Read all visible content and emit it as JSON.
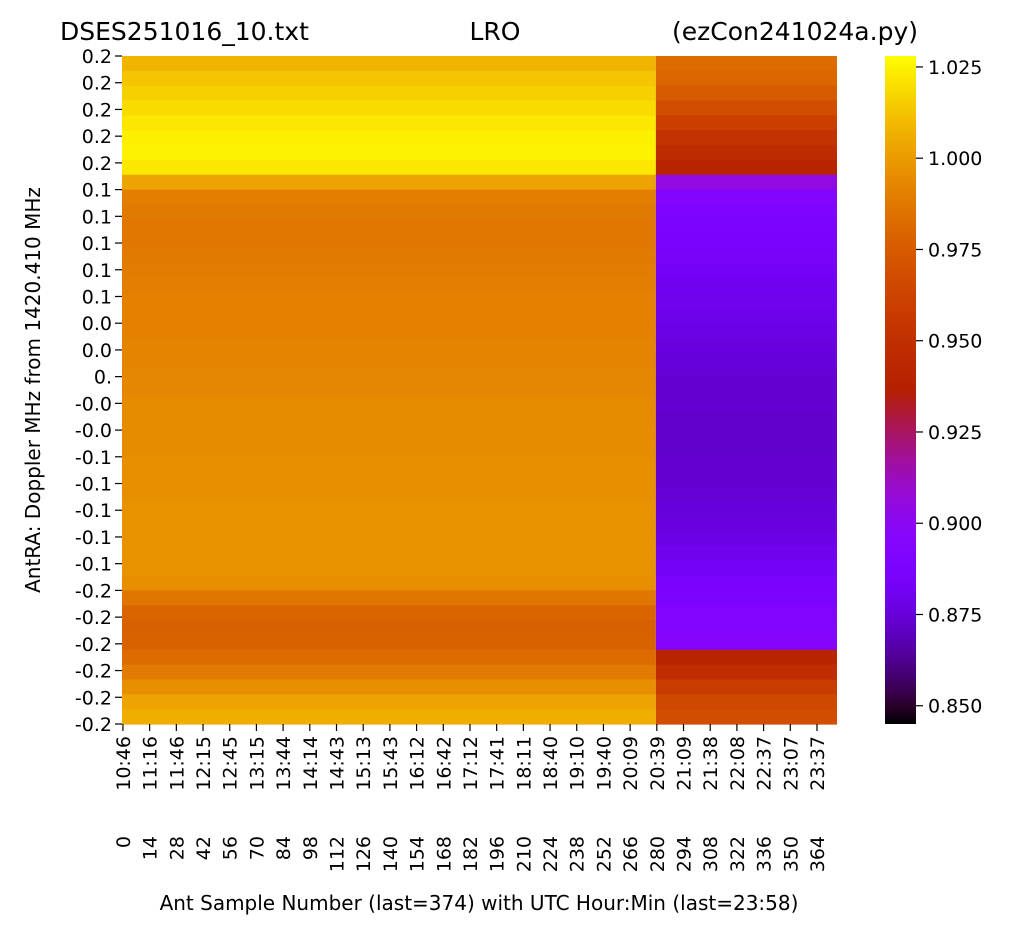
{
  "chart_data": {
    "type": "heatmap",
    "title_left": "DSES251016_10.txt",
    "title_center": "LRO",
    "title_right": "(ezCon241024a.py)",
    "xlabel": "Ant Sample Number (last=374) with UTC Hour:Min (last=23:58)",
    "ylabel": "AntRA:  Doppler MHz from 1420.410 MHz",
    "x_samples": [
      0,
      14,
      28,
      42,
      56,
      70,
      84,
      98,
      112,
      126,
      140,
      154,
      168,
      182,
      196,
      210,
      224,
      238,
      252,
      266,
      280,
      294,
      308,
      322,
      336,
      350,
      364
    ],
    "x_times": [
      "10:46",
      "11:16",
      "11:46",
      "12:15",
      "12:45",
      "13:15",
      "13:44",
      "14:14",
      "14:43",
      "15:13",
      "15:43",
      "16:12",
      "16:42",
      "17:12",
      "17:41",
      "18:11",
      "18:40",
      "19:10",
      "19:40",
      "20:09",
      "20:39",
      "21:09",
      "21:38",
      "22:08",
      "22:37",
      "23:07",
      "23:37"
    ],
    "x_range": [
      0,
      375
    ],
    "y_tick_labels": [
      "0.2",
      "0.2",
      "0.2",
      "0.2",
      "0.2",
      "0.1",
      "0.1",
      "0.1",
      "0.1",
      "0.1",
      "0.0",
      "0.0",
      "0.",
      "-0.0",
      "-0.0",
      "-0.1",
      "-0.1",
      "-0.1",
      "-0.1",
      "-0.1",
      "-0.2",
      "-0.2",
      "-0.2",
      "-0.2",
      "-0.2",
      "-0.2"
    ],
    "colorbar": {
      "colormap": "gnuplot",
      "range": [
        0.845,
        1.028
      ],
      "ticks": [
        "1.025",
        "1.000",
        "0.975",
        "0.950",
        "0.925",
        "0.900",
        "0.875",
        "0.850"
      ],
      "tick_values": [
        1.025,
        1.0,
        0.975,
        0.95,
        0.925,
        0.9,
        0.875,
        0.85
      ]
    },
    "segments": [
      {
        "sample_range": [
          0,
          279
        ],
        "profile_from_top": [
          1.008,
          1.013,
          1.016,
          1.019,
          1.022,
          1.024,
          1.025,
          1.022,
          1.003,
          0.99,
          0.988,
          0.987,
          0.987,
          0.988,
          0.989,
          0.99,
          0.991,
          0.991,
          0.991,
          0.992,
          0.992,
          0.993,
          0.993,
          0.994,
          0.994,
          0.995,
          0.995,
          0.996,
          0.996,
          0.996,
          0.997,
          0.997,
          0.997,
          0.997,
          0.997,
          0.996,
          0.986,
          0.979,
          0.977,
          0.978,
          0.982,
          0.988,
          0.996,
          1.003,
          1.006
        ]
      },
      {
        "sample_range": [
          280,
          374
        ],
        "profile_from_top": [
          0.982,
          0.98,
          0.975,
          0.968,
          0.96,
          0.952,
          0.946,
          0.94,
          0.905,
          0.893,
          0.89,
          0.888,
          0.886,
          0.884,
          0.883,
          0.881,
          0.88,
          0.879,
          0.878,
          0.876,
          0.875,
          0.874,
          0.873,
          0.873,
          0.872,
          0.872,
          0.872,
          0.873,
          0.873,
          0.874,
          0.875,
          0.876,
          0.878,
          0.88,
          0.883,
          0.886,
          0.888,
          0.891,
          0.893,
          0.895,
          0.94,
          0.948,
          0.958,
          0.965,
          0.968
        ]
      }
    ]
  }
}
